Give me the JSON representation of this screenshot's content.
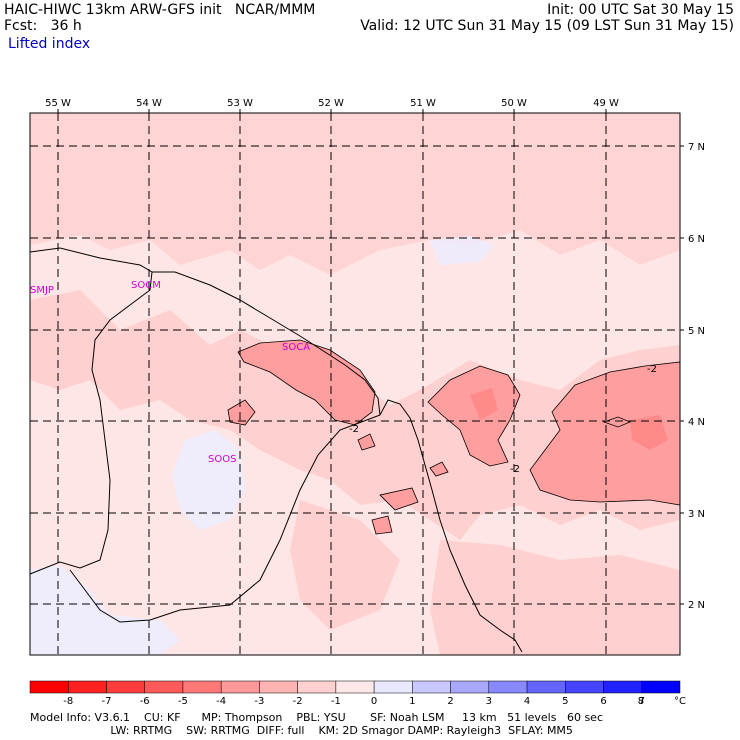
{
  "header": {
    "model": "HAIC-HIWC 13km ARW-GFS init",
    "org": "NCAR/MMM",
    "init": "Init: 00 UTC Sat 30 May 15",
    "fcst": "Fcst:   36 h",
    "valid": "Valid: 12 UTC Sun 31 May 15 (09 LST Sun 31 May 15)",
    "field": "Lifted index"
  },
  "lon_labels": [
    "55 W",
    "54 W",
    "53 W",
    "52 W",
    "51 W",
    "50 W",
    "49 W"
  ],
  "lat_labels": [
    "7 N",
    "6 N",
    "5 N",
    "4 N",
    "3 N",
    "2 N"
  ],
  "stations": [
    "SMJP",
    "SOCM",
    "SOCA",
    "SOOS"
  ],
  "contour_label": "-2",
  "colorbar": {
    "ticks": [
      "-8",
      "-7",
      "-6",
      "-5",
      "-4",
      "-3",
      "-2",
      "-1",
      "0",
      "1",
      "2",
      "3",
      "4",
      "5",
      "6",
      "7",
      "8"
    ],
    "unit": "°C",
    "colors": [
      "#ff0000",
      "#ff2020",
      "#ff3c3c",
      "#ff5a5a",
      "#ff7878",
      "#ff9898",
      "#ffb4b4",
      "#ffd0d0",
      "#ffe8e8",
      "#e8e8ff",
      "#c8c8ff",
      "#a8a8ff",
      "#8888ff",
      "#6464ff",
      "#4444ff",
      "#2222ff",
      "#0000ff"
    ]
  },
  "footer": {
    "line1": "Model Info: V3.6.1    CU: KF      MP: Thompson    PBL: YSU       SF: Noah LSM     13 km   51 levels   60 sec",
    "line2": "                       LW: RRTMG    SW: RRTMG  DIFF: full    KM: 2D Smagor DAMP: Rayleigh3  SFLAY: MM5"
  },
  "colors": {
    "background": "#ffe6e6",
    "light": "#ffd0d0",
    "medium": "#ffb0b0",
    "dark": "#ff9a9a",
    "bluish": "#ececff",
    "station": "#d000d0"
  }
}
